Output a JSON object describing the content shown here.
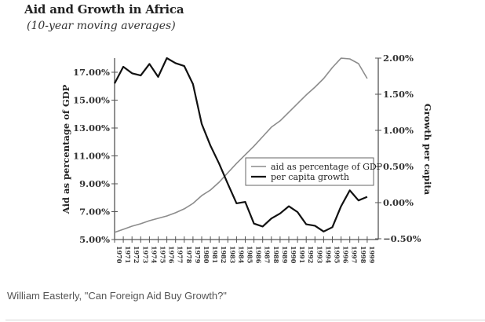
{
  "chart_data": {
    "type": "line",
    "title": "Aid and Growth in Africa",
    "subtitle": "(10-year moving averages)",
    "xlabel": "",
    "ylabel": "Aid as percentage of GDP",
    "y2label": "Growth per capita",
    "x": [
      1970,
      1971,
      1972,
      1973,
      1974,
      1975,
      1976,
      1977,
      1978,
      1979,
      1980,
      1981,
      1982,
      1983,
      1984,
      1985,
      1986,
      1987,
      1988,
      1989,
      1990,
      1991,
      1992,
      1993,
      1994,
      1995,
      1996,
      1997,
      1998,
      1999
    ],
    "x_tick_labels": [
      "1970",
      "1971",
      "1972",
      "1973",
      "1974",
      "1975",
      "1976",
      "1977",
      "1978",
      "1979",
      "1980",
      "1981",
      "1982",
      "1983",
      "1984",
      "1985",
      "1986",
      "1987",
      "1988",
      "1989",
      "1990",
      "1991",
      "1992",
      "1993",
      "1994",
      "1995",
      "1996",
      "1997",
      "1998",
      "1999"
    ],
    "ylim": [
      5,
      18
    ],
    "y_ticks": [
      5,
      7,
      9,
      11,
      13,
      15,
      17
    ],
    "y_tick_labels": [
      "5.00%",
      "7.00%",
      "9.00%",
      "11.00%",
      "13.00%",
      "15.00%",
      "17.00%"
    ],
    "y2lim": [
      -0.5,
      2.0
    ],
    "y2_ticks": [
      -0.5,
      0,
      0.5,
      1.0,
      1.5,
      2.0
    ],
    "y2_tick_labels": [
      "−0.50%",
      "0.00%",
      "0.50%",
      "1.00%",
      "1.50%",
      "2.00%"
    ],
    "series": [
      {
        "name": "aid as percentage of GDP",
        "axis": "left",
        "color": "#8c8c8c",
        "values": [
          5.51,
          5.73,
          5.96,
          6.13,
          6.35,
          6.52,
          6.69,
          6.92,
          7.2,
          7.59,
          8.15,
          8.55,
          9.11,
          9.79,
          10.46,
          11.08,
          11.7,
          12.38,
          13.06,
          13.51,
          14.13,
          14.75,
          15.37,
          15.93,
          16.55,
          17.34,
          18.01,
          17.96,
          17.62,
          16.55
        ]
      },
      {
        "name": "per capita growth",
        "axis": "right",
        "color": "#111111",
        "values": [
          1.65,
          1.88,
          1.79,
          1.76,
          1.92,
          1.74,
          2.0,
          1.93,
          1.89,
          1.64,
          1.09,
          0.79,
          0.54,
          0.26,
          -0.01,
          0.01,
          -0.29,
          -0.33,
          -0.22,
          -0.15,
          -0.05,
          -0.13,
          -0.3,
          -0.32,
          -0.4,
          -0.34,
          -0.05,
          0.17,
          0.03,
          0.08
        ]
      }
    ],
    "legend": {
      "position": "center-right",
      "entries": [
        "aid as percentage of GDP",
        "per capita growth"
      ]
    },
    "grid": false
  },
  "caption": "William Easterly, \"Can Foreign Aid Buy Growth?\""
}
